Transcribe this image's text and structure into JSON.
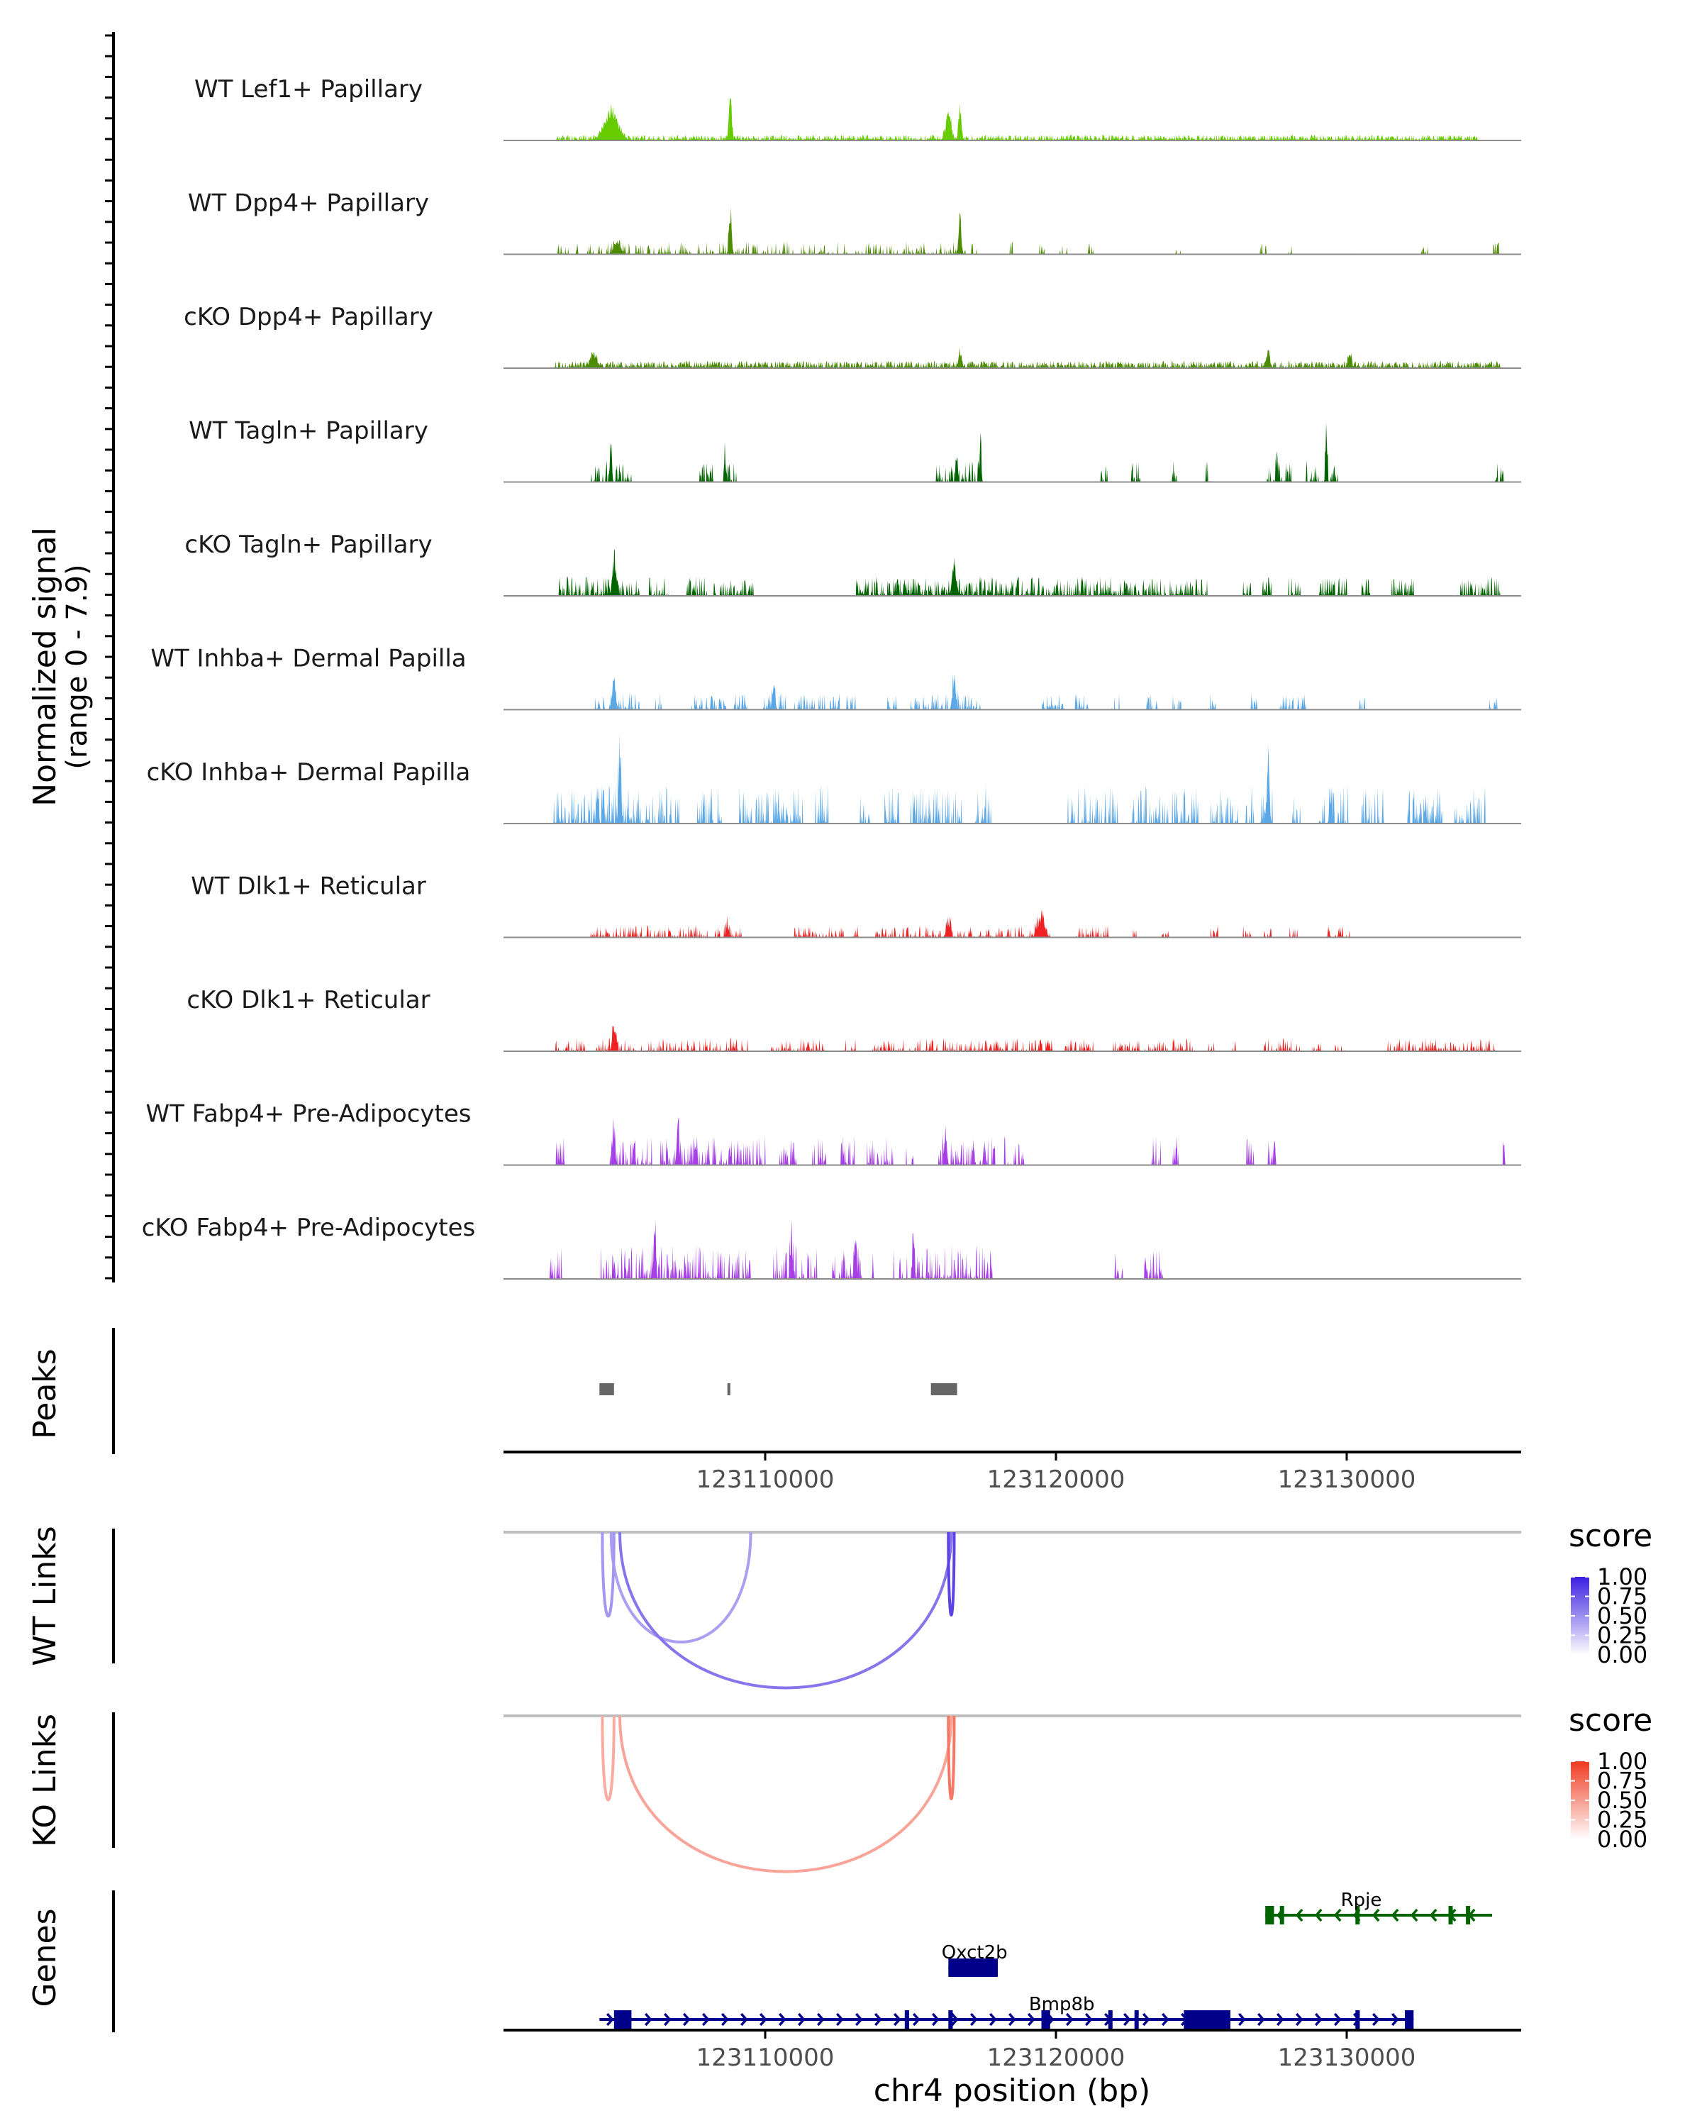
{
  "chart_data": {
    "type": "genome-coverage",
    "region": {
      "chrom": "chr4",
      "start": 123101000,
      "end": 123136000
    },
    "xlabel": "chr4 position (bp)",
    "x_ticks": [
      123110000,
      123120000,
      123130000
    ],
    "x_tick_labels": [
      "123110000",
      "123120000",
      "123130000"
    ],
    "coverage": {
      "ylabel_line1": "Normalized signal",
      "ylabel_line2": "(range 0 - 7.9)",
      "range": [
        0,
        7.9
      ],
      "tracks": [
        {
          "label": "WT Lef1+ Papillary",
          "color": "#66cc00",
          "kind": "smooth",
          "seed": 11,
          "peaks": [
            [
              123104700,
              2.6,
              300
            ],
            [
              123108800,
              3.4,
              70
            ],
            [
              123116300,
              2.4,
              120
            ],
            [
              123116700,
              3.1,
              60
            ]
          ],
          "segments": [
            [
              123102800,
              123134500
            ]
          ],
          "noise": 0.35,
          "density": 0.55
        },
        {
          "label": "WT Dpp4+ Papillary",
          "color": "#4d8c00",
          "kind": "spiky",
          "seed": 23,
          "peaks": [
            [
              123108800,
              4.2,
              60
            ],
            [
              123116700,
              3.8,
              60
            ],
            [
              123104900,
              1.3,
              150
            ]
          ],
          "segments": [
            [
              123102700,
              123111000
            ],
            [
              123111200,
              123117300
            ],
            [
              123118400,
              123118600
            ],
            [
              123119400,
              123119600
            ],
            [
              123120100,
              123120400
            ],
            [
              123121100,
              123121300
            ],
            [
              123124000,
              123124300
            ],
            [
              123127000,
              123127300
            ],
            [
              123128000,
              123128200
            ],
            [
              123130100,
              123130300
            ],
            [
              123132500,
              123132800
            ],
            [
              123135000,
              123135300
            ]
          ],
          "noise": 0.55,
          "density": 0.4
        },
        {
          "label": "cKO Dpp4+ Papillary",
          "color": "#4d8c00",
          "kind": "smooth",
          "seed": 37,
          "peaks": [
            [
              123104100,
              1.0,
              150
            ],
            [
              123116700,
              1.1,
              80
            ],
            [
              123127300,
              1.2,
              80
            ],
            [
              123130100,
              1.0,
              80
            ]
          ],
          "segments": [
            [
              123102700,
              123135300
            ]
          ],
          "noise": 0.45,
          "density": 0.6
        },
        {
          "label": "WT Tagln+ Papillary",
          "color": "#006400",
          "kind": "spiky",
          "seed": 41,
          "peaks": [
            [
              123104700,
              3.4,
              40
            ],
            [
              123108600,
              2.4,
              40
            ],
            [
              123116600,
              2.4,
              40
            ],
            [
              123117400,
              3.4,
              40
            ],
            [
              123127600,
              2.7,
              40
            ],
            [
              123129300,
              4.3,
              40
            ]
          ],
          "segments": [
            [
              123104000,
              123105400
            ],
            [
              123107700,
              123108200
            ],
            [
              123108600,
              123109100
            ],
            [
              123115800,
              123117500
            ],
            [
              123121500,
              123121800
            ],
            [
              123122600,
              123122900
            ],
            [
              123124000,
              123124200
            ],
            [
              123125100,
              123125400
            ],
            [
              123127200,
              123128100
            ],
            [
              123128600,
              123129700
            ],
            [
              123135100,
              123135400
            ]
          ],
          "noise": 0.9,
          "density": 0.6
        },
        {
          "label": "cKO Tagln+ Papillary",
          "color": "#006400",
          "kind": "spiky",
          "seed": 53,
          "peaks": [
            [
              123104800,
              2.9,
              80
            ],
            [
              123116500,
              2.6,
              100
            ]
          ],
          "segments": [
            [
              123102900,
              123105700
            ],
            [
              123106000,
              123106800
            ],
            [
              123107300,
              123108000
            ],
            [
              123108200,
              123109600
            ],
            [
              123113100,
              123125200
            ],
            [
              123126400,
              123126700
            ],
            [
              123127100,
              123127400
            ],
            [
              123128000,
              123128400
            ],
            [
              123129000,
              123130000
            ],
            [
              123130500,
              123130800
            ],
            [
              123131500,
              123132300
            ],
            [
              123133800,
              123135300
            ]
          ],
          "noise": 0.8,
          "density": 0.7
        },
        {
          "label": "WT Inhba+ Dermal Papilla",
          "color": "#5ca8e6",
          "kind": "spiky",
          "seed": 67,
          "peaks": [
            [
              123104800,
              2.8,
              80
            ],
            [
              123110300,
              2.5,
              60
            ],
            [
              123116500,
              2.8,
              80
            ]
          ],
          "segments": [
            [
              123104100,
              123105700
            ],
            [
              123106200,
              123106500
            ],
            [
              123107400,
              123109400
            ],
            [
              123109900,
              123110700
            ],
            [
              123111000,
              123112600
            ],
            [
              123112800,
              123113100
            ],
            [
              123114200,
              123114600
            ],
            [
              123115000,
              123117400
            ],
            [
              123119500,
              123120300
            ],
            [
              123120600,
              123121100
            ],
            [
              123121900,
              123122200
            ],
            [
              123123100,
              123123500
            ],
            [
              123124000,
              123124300
            ],
            [
              123125200,
              123125500
            ],
            [
              123126700,
              123127000
            ],
            [
              123127700,
              123128600
            ],
            [
              123130400,
              123130700
            ],
            [
              123134900,
              123135200
            ]
          ],
          "noise": 0.7,
          "density": 0.6
        },
        {
          "label": "cKO Inhba+ Dermal Papilla",
          "color": "#5ca8e6",
          "kind": "spiky",
          "seed": 79,
          "peaks": [
            [
              123105000,
              5.7,
              60
            ],
            [
              123127300,
              5.9,
              60
            ]
          ],
          "segments": [
            [
              123102700,
              123107100
            ],
            [
              123107600,
              123108500
            ],
            [
              123109100,
              123111300
            ],
            [
              123111700,
              123112200
            ],
            [
              123113200,
              123113600
            ],
            [
              123114100,
              123114600
            ],
            [
              123115000,
              123116800
            ],
            [
              123117200,
              123117800
            ],
            [
              123120400,
              123122200
            ],
            [
              123122600,
              123124900
            ],
            [
              123125300,
              123126800
            ],
            [
              123127000,
              123127500
            ],
            [
              123128100,
              123128400
            ],
            [
              123129000,
              123130100
            ],
            [
              123130500,
              123131300
            ],
            [
              123132100,
              123133300
            ],
            [
              123133700,
              123134800
            ]
          ],
          "noise": 1.6,
          "density": 0.55
        },
        {
          "label": "WT Dlk1+ Reticular",
          "color": "#ee2222",
          "kind": "spiky",
          "seed": 83,
          "peaks": [
            [
              123119500,
              1.7,
              160
            ],
            [
              123108700,
              1.2,
              60
            ],
            [
              123116300,
              1.2,
              100
            ]
          ],
          "segments": [
            [
              123104000,
              123109200
            ],
            [
              123111000,
              123112700
            ],
            [
              123113000,
              123113300
            ],
            [
              123113800,
              123119800
            ],
            [
              123120600,
              123121800
            ],
            [
              123122600,
              123122900
            ],
            [
              123123600,
              123123900
            ],
            [
              123125300,
              123125600
            ],
            [
              123126400,
              123126700
            ],
            [
              123127100,
              123127400
            ],
            [
              123128000,
              123128300
            ],
            [
              123129300,
              123130100
            ]
          ],
          "noise": 0.5,
          "density": 0.55
        },
        {
          "label": "cKO Dlk1+ Reticular",
          "color": "#ee2222",
          "kind": "spiky",
          "seed": 97,
          "peaks": [
            [
              123104800,
              2.2,
              80
            ]
          ],
          "segments": [
            [
              123102700,
              123103800
            ],
            [
              123104200,
              123109400
            ],
            [
              123110200,
              123112100
            ],
            [
              123112700,
              123113100
            ],
            [
              123113700,
              123119900
            ],
            [
              123120300,
              123121300
            ],
            [
              123121900,
              123124800
            ],
            [
              123125200,
              123125500
            ],
            [
              123125900,
              123126200
            ],
            [
              123127100,
              123128400
            ],
            [
              123128800,
              123129100
            ],
            [
              123129600,
              123130000
            ],
            [
              123131400,
              123135300
            ]
          ],
          "noise": 0.55,
          "density": 0.55
        },
        {
          "label": "WT Fabp4+ Pre-Adipocytes",
          "color": "#a640e6",
          "kind": "spiky",
          "seed": 101,
          "peaks": [
            [
              123107000,
              5.5,
              50
            ],
            [
              123104800,
              2.5,
              60
            ],
            [
              123116200,
              3.0,
              60
            ]
          ],
          "segments": [
            [
              123102800,
              123103100
            ],
            [
              123104600,
              123106100
            ],
            [
              123106400,
              123108100
            ],
            [
              123108200,
              123110000
            ],
            [
              123110500,
              123111100
            ],
            [
              123111600,
              123112100
            ],
            [
              123112600,
              123113100
            ],
            [
              123113500,
              123114400
            ],
            [
              123114800,
              123115100
            ],
            [
              123115900,
              123117900
            ],
            [
              123118200,
              123118900
            ],
            [
              123123300,
              123123600
            ],
            [
              123124000,
              123124200
            ],
            [
              123126500,
              123126800
            ],
            [
              123127300,
              123127600
            ],
            [
              123135300,
              123135500
            ]
          ],
          "noise": 1.2,
          "density": 0.6
        },
        {
          "label": "cKO Fabp4+ Pre-Adipocytes",
          "color": "#a640e6",
          "kind": "spiky",
          "seed": 113,
          "peaks": [
            [
              123106200,
              4.7,
              50
            ],
            [
              123110900,
              3.8,
              50
            ],
            [
              123113100,
              3.4,
              50
            ],
            [
              123115100,
              3.5,
              50
            ]
          ],
          "segments": [
            [
              123102600,
              123103000
            ],
            [
              123104300,
              123109500
            ],
            [
              123110200,
              123111800
            ],
            [
              123112300,
              123113800
            ],
            [
              123114400,
              123117800
            ],
            [
              123122000,
              123122300
            ],
            [
              123123000,
              123123700
            ]
          ],
          "noise": 1.4,
          "density": 0.55
        }
      ]
    },
    "peaks_track": {
      "ylabel": "Peaks",
      "intervals": [
        [
          123104300,
          123104800
        ],
        [
          123108700,
          123108800
        ],
        [
          123115700,
          123116600
        ]
      ]
    },
    "links": [
      {
        "ylabel": "WT Links",
        "legend_title": "score",
        "color_scale": [
          "#ffffff",
          "#3b1ee0"
        ],
        "legend_ticks": [
          1.0,
          0.75,
          0.5,
          0.25,
          0.0
        ],
        "legend_tick_labels": [
          "1.00",
          "0.75",
          "0.50",
          "0.25",
          "0.00"
        ],
        "arcs": [
          {
            "start": 123104700,
            "end": 123109500,
            "score": 0.3
          },
          {
            "start": 123105000,
            "end": 123116400,
            "score": 0.55
          },
          {
            "start": 123104400,
            "end": 123104800,
            "score": 0.35
          },
          {
            "start": 123116300,
            "end": 123116500,
            "score": 0.85
          }
        ]
      },
      {
        "ylabel": "KO Links",
        "legend_title": "score",
        "color_scale": [
          "#ffffff",
          "#f03a20"
        ],
        "legend_ticks": [
          1.0,
          0.75,
          0.5,
          0.25,
          0.0
        ],
        "legend_tick_labels": [
          "1.00",
          "0.75",
          "0.50",
          "0.25",
          "0.00"
        ],
        "arcs": [
          {
            "start": 123105000,
            "end": 123116400,
            "score": 0.35
          },
          {
            "start": 123104400,
            "end": 123104800,
            "score": 0.3
          },
          {
            "start": 123116300,
            "end": 123116500,
            "score": 0.65
          }
        ]
      }
    ],
    "genes": {
      "ylabel": "Genes",
      "items": [
        {
          "name": "Rpje",
          "color": "#006400",
          "strand": "-",
          "row": 0,
          "start": 123127200,
          "end": 123135000,
          "exons": [
            [
              123127200,
              123127500
            ],
            [
              123127700,
              123127800
            ],
            [
              123130300,
              123130400
            ],
            [
              123133500,
              123133600
            ],
            [
              123134100,
              123134200
            ]
          ]
        },
        {
          "name": "Oxct2b",
          "color": "#00008b",
          "strand": "+",
          "row": 1,
          "start": 123116300,
          "end": 123118000,
          "exons": [
            [
              123116300,
              123118000
            ]
          ]
        },
        {
          "name": "Bmp8b",
          "color": "#00008b",
          "strand": "+",
          "row": 2,
          "start": 123104300,
          "end": 123132300,
          "exons": [
            [
              123104800,
              123105400
            ],
            [
              123114800,
              123114950
            ],
            [
              123116300,
              123116450
            ],
            [
              123119500,
              123119800
            ],
            [
              123121800,
              123121900
            ],
            [
              123122700,
              123122800
            ],
            [
              123124400,
              123126000
            ],
            [
              123130300,
              123130450
            ],
            [
              123132000,
              123132300
            ]
          ]
        }
      ]
    }
  }
}
